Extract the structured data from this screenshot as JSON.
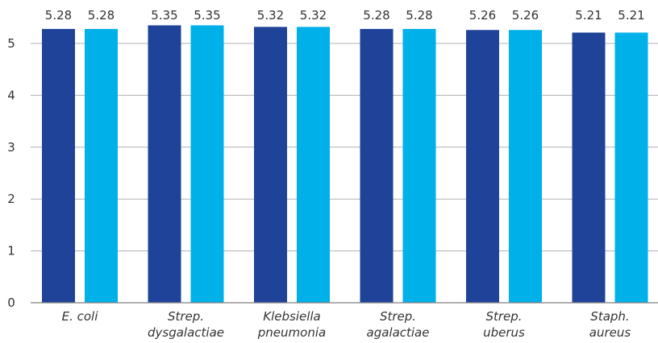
{
  "chart_data": {
    "type": "bar",
    "title": "",
    "xlabel": "",
    "ylabel": "",
    "categories": [
      [
        "E. coli"
      ],
      [
        "Strep.",
        "dysgalactiae"
      ],
      [
        "Klebsiella",
        "pneumonia"
      ],
      [
        "Strep.",
        "agalactiae"
      ],
      [
        "Strep.",
        "uberus"
      ],
      [
        "Staph.",
        "aureus"
      ]
    ],
    "series": [
      {
        "values": [
          5.28,
          5.35,
          5.32,
          5.28,
          5.26,
          5.21
        ],
        "color": "#1f4398"
      },
      {
        "values": [
          5.28,
          5.35,
          5.32,
          5.28,
          5.26,
          5.21
        ],
        "color": "#00b0e8"
      }
    ],
    "value_labels": [
      [
        "5.28",
        "5.35",
        "5.32",
        "5.28",
        "5.26",
        "5.21"
      ],
      [
        "5.28",
        "5.35",
        "5.32",
        "5.28",
        "5.26",
        "5.21"
      ]
    ],
    "yticks": [
      0,
      1,
      2,
      3,
      4,
      5
    ],
    "ytick_labels": [
      "0",
      "1",
      "2",
      "3",
      "4",
      "5"
    ],
    "ylim": [
      0,
      5.8
    ],
    "grid": true,
    "legend": "none"
  }
}
